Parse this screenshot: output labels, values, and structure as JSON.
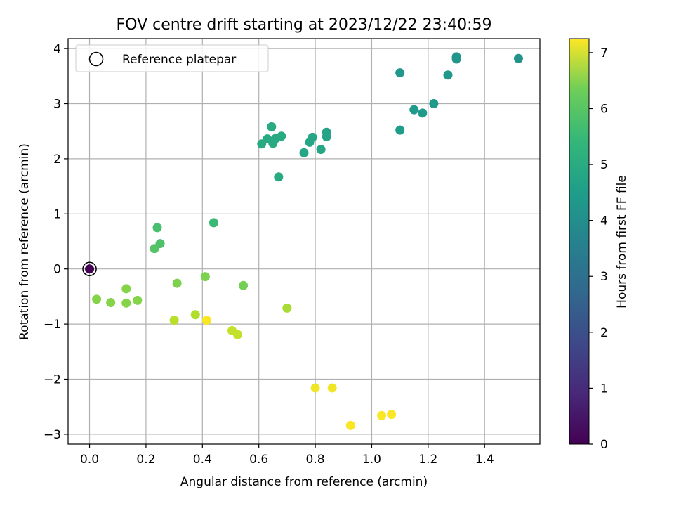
{
  "chart_data": {
    "type": "scatter",
    "title": "FOV centre drift starting at 2023/12/22 23:40:59",
    "xlabel": "Angular distance from reference (arcmin)",
    "ylabel": "Rotation from reference (arcmin)",
    "xlim": [
      -0.076,
      1.596
    ],
    "ylim": [
      -3.18,
      4.18
    ],
    "xticks": [
      0.0,
      0.2,
      0.4,
      0.6,
      0.8,
      1.0,
      1.2,
      1.4
    ],
    "xticklabels": [
      "0.0",
      "0.2",
      "0.4",
      "0.6",
      "0.8",
      "1.0",
      "1.2",
      "1.4"
    ],
    "yticks": [
      -3,
      -2,
      -1,
      0,
      1,
      2,
      3,
      4
    ],
    "yticklabels": [
      "−3",
      "−2",
      "−1",
      "0",
      "1",
      "2",
      "3",
      "4"
    ],
    "grid": true,
    "legend": {
      "placement": "top-left",
      "entries": [
        "Reference platepar"
      ]
    },
    "colormap": "viridis",
    "colorbar": {
      "label": "Hours from first FF file",
      "range": [
        0,
        7.25
      ],
      "ticks": [
        0,
        1,
        2,
        3,
        4,
        5,
        6,
        7
      ],
      "ticklabels": [
        "0",
        "1",
        "2",
        "3",
        "4",
        "5",
        "6",
        "7"
      ]
    },
    "reference": {
      "x": 0.0,
      "y": 0.0
    },
    "points": [
      {
        "x": 0.0,
        "y": 0.0,
        "c": 0.0
      },
      {
        "x": 1.52,
        "y": 3.82,
        "c": 3.7
      },
      {
        "x": 1.3,
        "y": 3.85,
        "c": 3.75
      },
      {
        "x": 1.3,
        "y": 3.81,
        "c": 3.8
      },
      {
        "x": 1.27,
        "y": 3.52,
        "c": 3.85
      },
      {
        "x": 1.1,
        "y": 3.56,
        "c": 3.85
      },
      {
        "x": 1.22,
        "y": 3.0,
        "c": 3.9
      },
      {
        "x": 1.18,
        "y": 2.83,
        "c": 3.9
      },
      {
        "x": 1.15,
        "y": 2.89,
        "c": 3.9
      },
      {
        "x": 1.1,
        "y": 2.52,
        "c": 4.0
      },
      {
        "x": 0.84,
        "y": 2.48,
        "c": 4.2
      },
      {
        "x": 0.84,
        "y": 2.4,
        "c": 4.2
      },
      {
        "x": 0.79,
        "y": 2.39,
        "c": 4.3
      },
      {
        "x": 0.78,
        "y": 2.3,
        "c": 4.3
      },
      {
        "x": 0.82,
        "y": 2.17,
        "c": 4.3
      },
      {
        "x": 0.76,
        "y": 2.11,
        "c": 4.3
      },
      {
        "x": 0.68,
        "y": 2.41,
        "c": 4.4
      },
      {
        "x": 0.66,
        "y": 2.37,
        "c": 4.4
      },
      {
        "x": 0.645,
        "y": 2.58,
        "c": 4.4
      },
      {
        "x": 0.63,
        "y": 2.36,
        "c": 4.4
      },
      {
        "x": 0.65,
        "y": 2.28,
        "c": 4.4
      },
      {
        "x": 0.61,
        "y": 2.27,
        "c": 4.4
      },
      {
        "x": 0.67,
        "y": 1.67,
        "c": 4.4
      },
      {
        "x": 0.44,
        "y": 0.84,
        "c": 4.9
      },
      {
        "x": 0.24,
        "y": 0.75,
        "c": 5.1
      },
      {
        "x": 0.25,
        "y": 0.46,
        "c": 5.2
      },
      {
        "x": 0.23,
        "y": 0.37,
        "c": 5.3
      },
      {
        "x": 0.545,
        "y": -0.3,
        "c": 5.7
      },
      {
        "x": 0.31,
        "y": -0.26,
        "c": 5.8
      },
      {
        "x": 0.41,
        "y": -0.14,
        "c": 5.8
      },
      {
        "x": 0.13,
        "y": -0.36,
        "c": 5.9
      },
      {
        "x": 0.025,
        "y": -0.55,
        "c": 5.9
      },
      {
        "x": 0.075,
        "y": -0.61,
        "c": 5.9
      },
      {
        "x": 0.13,
        "y": -0.62,
        "c": 5.9
      },
      {
        "x": 0.17,
        "y": -0.57,
        "c": 5.9
      },
      {
        "x": 0.7,
        "y": -0.71,
        "c": 6.3
      },
      {
        "x": 0.375,
        "y": -0.83,
        "c": 6.4
      },
      {
        "x": 0.3,
        "y": -0.93,
        "c": 6.5
      },
      {
        "x": 0.505,
        "y": -1.12,
        "c": 6.6
      },
      {
        "x": 0.525,
        "y": -1.19,
        "c": 6.6
      },
      {
        "x": 0.415,
        "y": -0.93,
        "c": 7.2
      },
      {
        "x": 0.8,
        "y": -2.16,
        "c": 7.1
      },
      {
        "x": 0.86,
        "y": -2.16,
        "c": 7.1
      },
      {
        "x": 0.925,
        "y": -2.84,
        "c": 7.2
      },
      {
        "x": 1.035,
        "y": -2.66,
        "c": 7.2
      },
      {
        "x": 1.07,
        "y": -2.64,
        "c": 7.2
      }
    ]
  }
}
